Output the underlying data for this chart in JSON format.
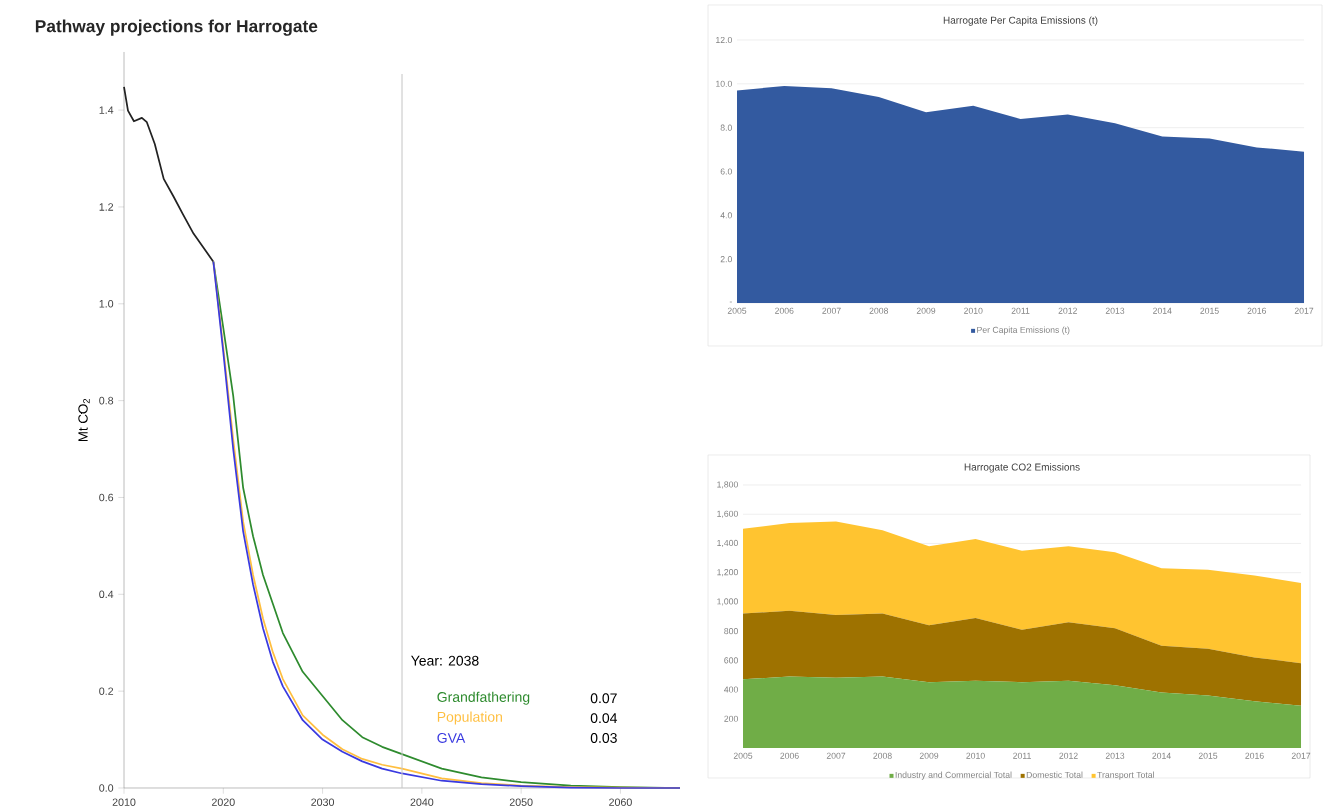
{
  "chart_data": [
    {
      "type": "line",
      "title": "Pathway projections for Harrogate",
      "ylabel": "Mt CO$_{2}$",
      "xlim": [
        2010,
        2066
      ],
      "ylim": [
        0,
        1.52
      ],
      "xticks": [
        2010,
        2020,
        2030,
        2040,
        2050,
        2060
      ],
      "yticks": [
        {
          "value": 0,
          "label": "0.0"
        },
        0.2,
        0.4,
        0.6,
        0.8,
        {
          "value": 1,
          "label": "1.0"
        },
        1.2,
        1.4
      ],
      "marker": "none",
      "line_style": "solid",
      "legend": "bottom right",
      "ref_lines": [
        {
          "axis": "x",
          "value": 2038,
          "label": "Year: 2038",
          "color": "#c8c8c8"
        }
      ],
      "annotations": [
        "0.07",
        "0.04",
        "0.03"
      ],
      "series": [
        {
          "color": "#222222",
          "x": [
            2010,
            2010.4,
            2011,
            2011.8,
            2012.3,
            2013.1,
            2014,
            2015,
            2015.9,
            2017,
            2019
          ],
          "values": [
            1.448,
            1.399,
            1.377,
            1.384,
            1.375,
            1.33,
            1.258,
            1.221,
            1.186,
            1.145,
            1.087
          ]
        },
        {
          "name": "Grandfathering",
          "color": "#2e8b2e",
          "x": [
            2019,
            2020,
            2021,
            2022,
            2023,
            2024,
            2025,
            2026,
            2028,
            2030,
            2032,
            2034,
            2036,
            2038,
            2042,
            2046,
            2050,
            2055,
            2060,
            2066
          ],
          "values": [
            1.087,
            0.95,
            0.81,
            0.62,
            0.52,
            0.44,
            0.38,
            0.32,
            0.24,
            0.19,
            0.14,
            0.105,
            0.085,
            0.07,
            0.04,
            0.022,
            0.012,
            0.005,
            0.002,
            0
          ]
        },
        {
          "name": "Population",
          "color": "#ffbf40",
          "x": [
            2019,
            2020,
            2021,
            2022,
            2023,
            2024,
            2025,
            2026,
            2028,
            2030,
            2032,
            2034,
            2036,
            2038,
            2042,
            2046,
            2050,
            2055,
            2060,
            2066
          ],
          "values": [
            1.087,
            0.91,
            0.72,
            0.55,
            0.44,
            0.35,
            0.28,
            0.225,
            0.15,
            0.11,
            0.08,
            0.06,
            0.048,
            0.04,
            0.02,
            0.01,
            0.005,
            0.002,
            0.001,
            0
          ]
        },
        {
          "name": "GVA",
          "color": "#3a3ae0",
          "x": [
            2019,
            2020,
            2021,
            2022,
            2023,
            2024,
            2025,
            2026,
            2028,
            2030,
            2032,
            2034,
            2036,
            2038,
            2042,
            2046,
            2050,
            2055,
            2060,
            2066
          ],
          "values": [
            1.087,
            0.9,
            0.7,
            0.53,
            0.42,
            0.33,
            0.26,
            0.21,
            0.14,
            0.1,
            0.075,
            0.055,
            0.04,
            0.03,
            0.015,
            0.008,
            0.004,
            0.001,
            0,
            0
          ]
        }
      ]
    },
    {
      "type": "area",
      "title": "Harrogate Per Capita Emissions (t)",
      "categories": [
        "2005",
        "2006",
        "2007",
        "2008",
        "2009",
        "2010",
        "2011",
        "2012",
        "2013",
        "2014",
        "2015",
        "2016",
        "2017"
      ],
      "ylim": [
        0,
        12
      ],
      "yticks": [
        {
          "value": 0,
          "label": "-"
        },
        {
          "value": 2,
          "label": "2.0"
        },
        {
          "value": 4,
          "label": "4.0"
        },
        {
          "value": 6,
          "label": "6.0"
        },
        {
          "value": 8,
          "label": "8.0"
        },
        {
          "value": 10,
          "label": "10.0"
        },
        {
          "value": 12,
          "label": "12.0"
        }
      ],
      "grid": "y",
      "legend": "bottom",
      "series": [
        {
          "name": "Per Capita Emissions (t)",
          "color": "#335aa0",
          "values": [
            9.7,
            9.9,
            9.8,
            9.4,
            8.7,
            9.0,
            8.4,
            8.6,
            8.2,
            7.6,
            7.5,
            7.1,
            6.9
          ]
        }
      ]
    },
    {
      "type": "area",
      "title": "Harrogate CO2 Emissions",
      "categories": [
        "2005",
        "2006",
        "2007",
        "2008",
        "2009",
        "2010",
        "2011",
        "2012",
        "2013",
        "2014",
        "2015",
        "2016",
        "2017"
      ],
      "ylim": [
        0,
        1800
      ],
      "yticks": [
        {
          "value": 200,
          "label": "200"
        },
        {
          "value": 400,
          "label": "400"
        },
        {
          "value": 600,
          "label": "600"
        },
        {
          "value": 800,
          "label": "800"
        },
        {
          "value": 1000,
          "label": "1,000"
        },
        {
          "value": 1200,
          "label": "1,200"
        },
        {
          "value": 1400,
          "label": "1,400"
        },
        {
          "value": 1600,
          "label": "1,600"
        },
        {
          "value": 1800,
          "label": "1,800"
        }
      ],
      "grid": "y",
      "stacked": true,
      "legend": "bottom",
      "series": [
        {
          "name": "Industry and Commercial Total",
          "color": "#70ad47",
          "values": [
            470,
            490,
            480,
            490,
            450,
            460,
            450,
            460,
            430,
            380,
            360,
            320,
            290
          ]
        },
        {
          "name": "Domestic Total",
          "color": "#9e7200",
          "values": [
            450,
            450,
            430,
            430,
            390,
            430,
            360,
            400,
            390,
            320,
            320,
            300,
            290
          ]
        },
        {
          "name": "Transport Total",
          "color": "#ffc430",
          "values": [
            580,
            600,
            640,
            570,
            540,
            540,
            540,
            520,
            520,
            530,
            540,
            560,
            550
          ]
        }
      ]
    }
  ]
}
